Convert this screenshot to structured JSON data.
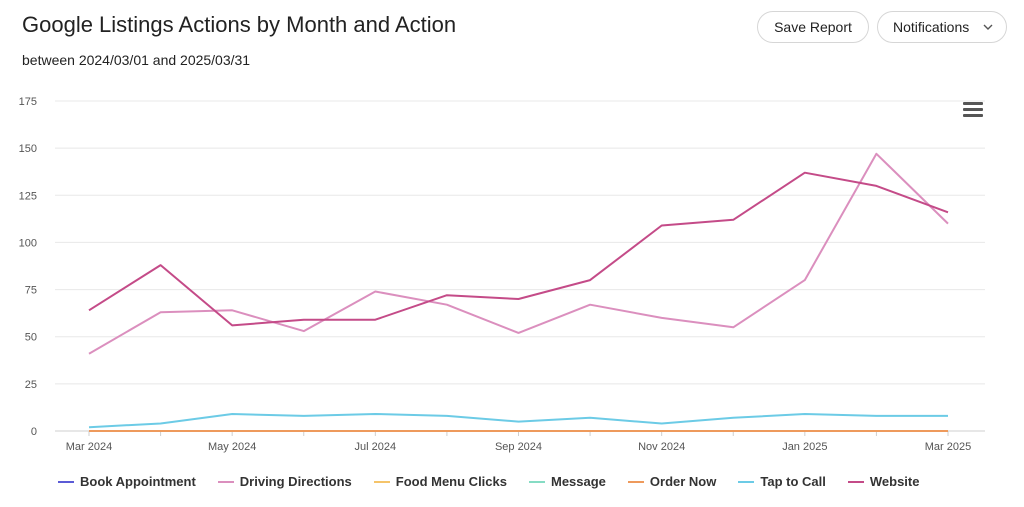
{
  "header": {
    "title": "Google Listings Actions by Month and Action",
    "subtitle": "between 2024/03/01 and 2025/03/31",
    "save_label": "Save Report",
    "notifications_label": "Notifications"
  },
  "icons": {
    "menu": "hamburger-menu-icon",
    "chevron": "chevron-down-icon"
  },
  "chart_data": {
    "type": "line",
    "title": "Google Listings Actions by Month and Action",
    "subtitle": "between 2024/03/01 and 2025/03/31",
    "xlabel": "",
    "ylabel": "",
    "ylim": [
      0,
      175
    ],
    "yticks": [
      0,
      25,
      50,
      75,
      100,
      125,
      150,
      175
    ],
    "grid": true,
    "legend": "bottom",
    "categories": [
      "Mar 2024",
      "Apr 2024",
      "May 2024",
      "Jun 2024",
      "Jul 2024",
      "Aug 2024",
      "Sep 2024",
      "Oct 2024",
      "Nov 2024",
      "Dec 2024",
      "Jan 2025",
      "Feb 2025",
      "Mar 2025"
    ],
    "xtick_labels": [
      "Mar 2024",
      "",
      "May 2024",
      "",
      "Jul 2024",
      "",
      "Sep 2024",
      "",
      "Nov 2024",
      "",
      "Jan 2025",
      "",
      "Mar 2025"
    ],
    "series": [
      {
        "name": "Book Appointment",
        "color": "#5b5bd6",
        "values": [
          0,
          0,
          0,
          0,
          0,
          0,
          0,
          0,
          0,
          0,
          0,
          0,
          0
        ]
      },
      {
        "name": "Driving Directions",
        "color": "#db8fbe",
        "values": [
          41,
          63,
          64,
          53,
          74,
          67,
          52,
          67,
          60,
          55,
          80,
          147,
          110
        ]
      },
      {
        "name": "Food Menu Clicks",
        "color": "#f5c46a",
        "values": [
          0,
          0,
          0,
          0,
          0,
          0,
          0,
          0,
          0,
          0,
          0,
          0,
          0
        ]
      },
      {
        "name": "Message",
        "color": "#86dcc4",
        "values": [
          0,
          0,
          0,
          0,
          0,
          0,
          0,
          0,
          0,
          0,
          0,
          0,
          0
        ]
      },
      {
        "name": "Order Now",
        "color": "#ee9a5c",
        "values": [
          0,
          0,
          0,
          0,
          0,
          0,
          0,
          0,
          0,
          0,
          0,
          0,
          0
        ]
      },
      {
        "name": "Tap to Call",
        "color": "#6ccbe6",
        "values": [
          2,
          4,
          9,
          8,
          9,
          8,
          5,
          7,
          4,
          7,
          9,
          8,
          8
        ]
      },
      {
        "name": "Website",
        "color": "#c44b88",
        "values": [
          64,
          88,
          56,
          59,
          59,
          72,
          70,
          80,
          109,
          112,
          137,
          130,
          116
        ]
      }
    ]
  }
}
